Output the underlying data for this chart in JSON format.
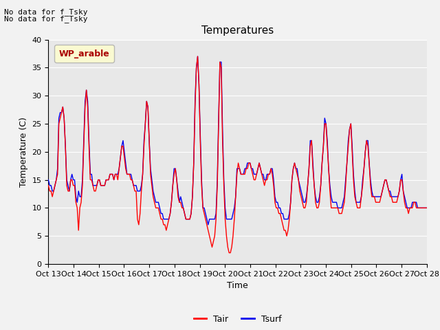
{
  "title": "Temperatures",
  "xlabel": "Time",
  "ylabel": "Temperature (C)",
  "ylim": [
    0,
    40
  ],
  "yticks": [
    0,
    5,
    10,
    15,
    20,
    25,
    30,
    35,
    40
  ],
  "xtick_labels": [
    "Oct 13",
    "Oct 14",
    "Oct 15",
    "Oct 16",
    "Oct 17",
    "Oct 18",
    "Oct 19",
    "Oct 20",
    "Oct 21",
    "Oct 22",
    "Oct 23",
    "Oct 24",
    "Oct 25",
    "Oct 26",
    "Oct 27",
    "Oct 28"
  ],
  "annotation_line1": "No data for f_Tsky",
  "annotation_line2": "No data for f_Tsky",
  "legend_label": "WP_arable",
  "tair_label": "Tair",
  "tsurf_label": "Tsurf",
  "tair_color": "#FF0000",
  "tsurf_color": "#0000EE",
  "background_color": "#E8E8E8",
  "fig_background": "#F2F2F2",
  "title_fontsize": 11,
  "axis_label_fontsize": 9,
  "tick_fontsize": 8,
  "wp_box_facecolor": "#FFFFCC",
  "wp_box_edgecolor": "#AAAAAA",
  "wp_text_color": "#AA0000",
  "tair_values": [
    14,
    13,
    13,
    12,
    13,
    14,
    15,
    16,
    25,
    26,
    27,
    28,
    26,
    21,
    14,
    13,
    13,
    15,
    15,
    14,
    14,
    11,
    10,
    6,
    10,
    11,
    14,
    21,
    28,
    31,
    28,
    21,
    15,
    15,
    14,
    13,
    13,
    14,
    15,
    15,
    14,
    14,
    14,
    14,
    15,
    15,
    15,
    16,
    16,
    16,
    15,
    16,
    16,
    15,
    17,
    19,
    21,
    21,
    19,
    17,
    16,
    16,
    16,
    15,
    15,
    14,
    13,
    13,
    8,
    7,
    9,
    13,
    16,
    21,
    25,
    29,
    28,
    22,
    16,
    14,
    12,
    11,
    10,
    10,
    10,
    9,
    8,
    8,
    7,
    7,
    6,
    7,
    8,
    9,
    11,
    14,
    16,
    17,
    15,
    12,
    11,
    11,
    10,
    10,
    9,
    8,
    8,
    8,
    8,
    9,
    12,
    18,
    28,
    35,
    37,
    32,
    22,
    14,
    10,
    9,
    8,
    7,
    6,
    5,
    4,
    3,
    4,
    5,
    8,
    14,
    25,
    36,
    35,
    22,
    14,
    8,
    5,
    3,
    2,
    2,
    3,
    5,
    8,
    12,
    16,
    18,
    17,
    16,
    16,
    16,
    16,
    17,
    17,
    18,
    18,
    17,
    16,
    15,
    15,
    16,
    17,
    18,
    17,
    16,
    15,
    14,
    15,
    15,
    16,
    16,
    17,
    16,
    14,
    11,
    10,
    10,
    9,
    9,
    8,
    7,
    6,
    6,
    5,
    6,
    8,
    11,
    15,
    17,
    18,
    17,
    16,
    15,
    13,
    12,
    11,
    10,
    10,
    11,
    14,
    17,
    21,
    22,
    17,
    14,
    11,
    10,
    10,
    11,
    14,
    18,
    21,
    25,
    25,
    21,
    17,
    13,
    10,
    10,
    10,
    10,
    10,
    10,
    9,
    9,
    9,
    10,
    11,
    14,
    18,
    21,
    24,
    25,
    20,
    15,
    12,
    11,
    10,
    10,
    10,
    12,
    14,
    17,
    20,
    22,
    21,
    18,
    14,
    12,
    12,
    12,
    11,
    11,
    11,
    11,
    12,
    13,
    14,
    15,
    15,
    14,
    13,
    12,
    12,
    11,
    11,
    11,
    11,
    12,
    13,
    15,
    15,
    13,
    11,
    10,
    10,
    9,
    10,
    10,
    10,
    11,
    11,
    10,
    10,
    10,
    10,
    10,
    10,
    10,
    10,
    10
  ],
  "tsurf_values": [
    15,
    14,
    14,
    13,
    13,
    14,
    15,
    17,
    26,
    27,
    27,
    28,
    26,
    21,
    15,
    14,
    13,
    15,
    16,
    15,
    15,
    12,
    11,
    13,
    12,
    12,
    15,
    22,
    29,
    31,
    29,
    22,
    16,
    16,
    14,
    14,
    14,
    14,
    15,
    15,
    14,
    14,
    14,
    14,
    15,
    15,
    15,
    16,
    16,
    16,
    15,
    16,
    16,
    16,
    17,
    19,
    21,
    22,
    20,
    18,
    16,
    16,
    16,
    16,
    15,
    14,
    14,
    14,
    13,
    13,
    13,
    14,
    16,
    22,
    25,
    29,
    28,
    22,
    17,
    15,
    13,
    12,
    11,
    11,
    11,
    10,
    9,
    9,
    8,
    8,
    8,
    8,
    8,
    9,
    11,
    14,
    17,
    17,
    15,
    13,
    11,
    12,
    11,
    10,
    9,
    8,
    8,
    8,
    8,
    9,
    12,
    18,
    29,
    35,
    37,
    32,
    23,
    15,
    10,
    10,
    9,
    8,
    7,
    8,
    8,
    8,
    8,
    8,
    9,
    15,
    26,
    36,
    36,
    24,
    15,
    10,
    8,
    8,
    8,
    8,
    8,
    9,
    10,
    12,
    17,
    17,
    17,
    16,
    16,
    16,
    17,
    17,
    18,
    18,
    18,
    17,
    17,
    16,
    16,
    16,
    17,
    18,
    17,
    16,
    16,
    15,
    15,
    16,
    16,
    16,
    17,
    17,
    15,
    12,
    11,
    11,
    10,
    10,
    9,
    9,
    8,
    8,
    8,
    8,
    9,
    11,
    15,
    17,
    18,
    17,
    17,
    15,
    14,
    13,
    12,
    11,
    11,
    12,
    14,
    17,
    22,
    22,
    18,
    14,
    12,
    11,
    11,
    12,
    14,
    18,
    21,
    26,
    25,
    22,
    17,
    14,
    12,
    11,
    11,
    11,
    11,
    10,
    10,
    10,
    10,
    11,
    12,
    15,
    18,
    22,
    24,
    25,
    21,
    16,
    13,
    11,
    11,
    11,
    11,
    12,
    15,
    17,
    20,
    22,
    22,
    18,
    15,
    13,
    12,
    12,
    12,
    12,
    12,
    12,
    12,
    13,
    14,
    15,
    15,
    14,
    13,
    13,
    12,
    12,
    12,
    12,
    12,
    12,
    13,
    15,
    16,
    13,
    12,
    11,
    10,
    10,
    10,
    10,
    11,
    11,
    11,
    11,
    10,
    10,
    10,
    10,
    10,
    10,
    10,
    10
  ]
}
